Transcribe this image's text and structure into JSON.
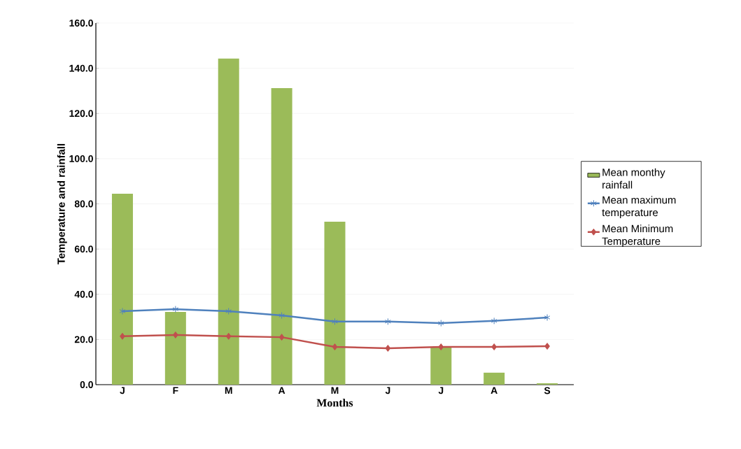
{
  "chart_data": {
    "type": "bar",
    "xlabel": "Months",
    "ylabel": "Temperature and rainfall",
    "categories": [
      "J",
      "F",
      "M",
      "A",
      "M",
      "J",
      "J",
      "A",
      "S"
    ],
    "series": [
      {
        "name": "Mean monthy rainfall",
        "color": "#9bbb59",
        "values": [
          84.5,
          32.2,
          144.3,
          131.2,
          72.1,
          0,
          16.4,
          5.3,
          0.6
        ]
      },
      {
        "name": "Mean maximum temperature",
        "type": "line",
        "color": "#4f81bd",
        "marker": "cross",
        "values": [
          32.5,
          33.4,
          32.5,
          30.6,
          27.9,
          27.9,
          27.2,
          28.2,
          29.7
        ]
      },
      {
        "name": "Mean Minimum Temperature",
        "type": "line",
        "color": "#c0504d",
        "marker": "diamond",
        "values": [
          21.4,
          22.0,
          21.4,
          21.0,
          16.7,
          16.1,
          16.7,
          16.7,
          17.0
        ]
      }
    ],
    "ylim": [
      0,
      160
    ],
    "yticks": [
      {
        "value": 0,
        "label": "0.0"
      },
      {
        "value": 20,
        "label": "20.0"
      },
      {
        "value": 40,
        "label": "40.0"
      },
      {
        "value": 60,
        "label": "60.0"
      },
      {
        "value": 80,
        "label": "80.0"
      },
      {
        "value": 100,
        "label": "100.0"
      },
      {
        "value": 120,
        "label": "120.0"
      },
      {
        "value": 140,
        "label": "140.0"
      },
      {
        "value": 160,
        "label": "160.0"
      }
    ],
    "grid": "y",
    "legend": "right"
  }
}
